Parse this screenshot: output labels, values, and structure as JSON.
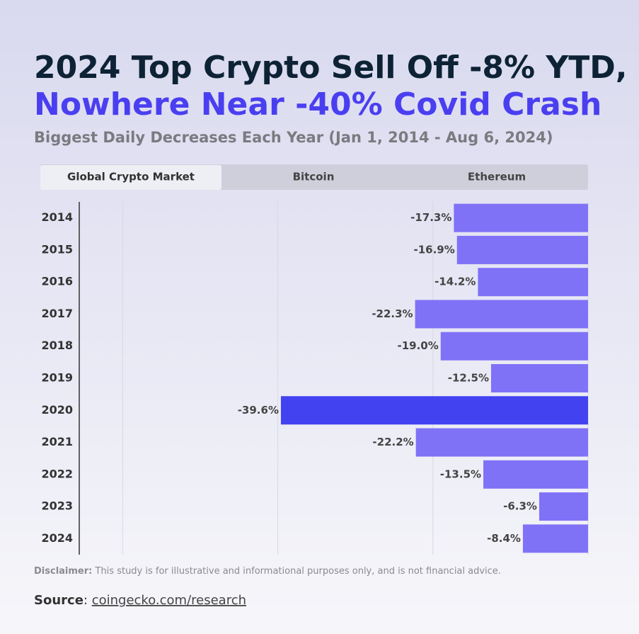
{
  "header": {
    "title_line1": "2024 Top Crypto Sell Off -8% YTD,",
    "title_line2": "Nowhere Near -40% Covid Crash",
    "subtitle": "Biggest Daily Decreases Each Year (Jan 1, 2014 - Aug 6, 2024)"
  },
  "tabs": [
    "Global Crypto Market",
    "Bitcoin",
    "Ethereum"
  ],
  "chart_data": {
    "type": "hbar",
    "categories": [
      "2014",
      "2015",
      "2016",
      "2017",
      "2018",
      "2019",
      "2020",
      "2021",
      "2022",
      "2023",
      "2024"
    ],
    "values": [
      -17.3,
      -16.9,
      -14.2,
      -22.3,
      -19.0,
      -12.5,
      -39.6,
      -22.2,
      -13.5,
      -6.3,
      -8.4
    ],
    "value_labels": [
      "-17.3%",
      "-16.9%",
      "-14.2%",
      "-22.3%",
      "-19.0%",
      "-12.5%",
      "-39.6%",
      "-22.2%",
      "-13.5%",
      "-6.3%",
      "-8.4%"
    ],
    "colors": [
      "#7f72f7",
      "#7f72f7",
      "#7f72f7",
      "#7f72f7",
      "#7f72f7",
      "#7f72f7",
      "#4242f0",
      "#7f72f7",
      "#7f72f7",
      "#7f72f7",
      "#7f72f7"
    ],
    "xlim": [
      -65.6,
      0
    ],
    "xticks": [
      -60,
      -40,
      -20,
      0
    ],
    "grid": true
  },
  "footer": {
    "disclaimer_label": "Disclaimer:",
    "disclaimer_text": "This study is for illustrative and informational purposes only, and is not financial advice.",
    "source_label": "Source",
    "source_separator": ":",
    "source_link": "coingecko.com/research"
  }
}
